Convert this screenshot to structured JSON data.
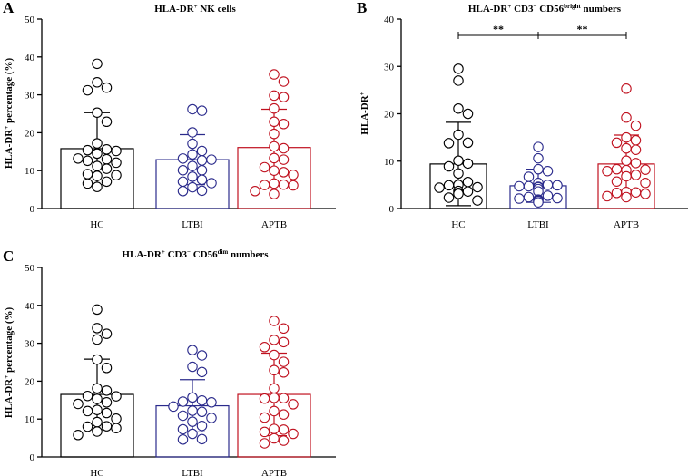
{
  "colors": {
    "HC": "#000000",
    "LTBI": "#2b2b8c",
    "APTB": "#c0111f",
    "axis": "#000000"
  },
  "chart_data": [
    {
      "type": "bar",
      "panel": "A",
      "title_main": "HLA-DR",
      "title_sup": "+",
      "title_rest": " NK cells",
      "ylabel": "HLA-DR",
      "ylabel_sup": "+",
      "ylabel_rest": " percentage (%)",
      "ylim": [
        0,
        50
      ],
      "yticks": [
        0,
        10,
        20,
        30,
        40,
        50
      ],
      "categories": [
        "HC",
        "LTBI",
        "APTB"
      ],
      "values": [
        15.8,
        12.9,
        16.1
      ],
      "sd": [
        9.5,
        6.6,
        10.1
      ],
      "points": [
        [
          38.2,
          33.3,
          31.9,
          31.2,
          25.3,
          22.9,
          17.2,
          15.6,
          15.4,
          15.2,
          14.5,
          13.2,
          13.0,
          12.6,
          12.1,
          11.2,
          10.5,
          9.1,
          8.8,
          8.6,
          7.1,
          6.6,
          5.7
        ],
        [
          26.2,
          25.8,
          20.1,
          17.1,
          15.2,
          14.3,
          13.2,
          12.9,
          12.7,
          11.2,
          10.1,
          10.1,
          8.4,
          7.6,
          7.1,
          6.7,
          5.6,
          4.7,
          4.6
        ],
        [
          35.4,
          33.5,
          29.8,
          29.4,
          26.4,
          22.9,
          22.3,
          19.7,
          16.4,
          15.9,
          13.3,
          12.9,
          10.9,
          10.0,
          9.6,
          8.9,
          6.6,
          6.3,
          6.2,
          6.1,
          4.6,
          3.8
        ]
      ],
      "significance": []
    },
    {
      "type": "bar",
      "panel": "B",
      "title_main": "HLA-DR",
      "title_sup": "+",
      "title_rest": " CD3",
      "title_sup2": "−",
      "title_rest2": " CD56",
      "title_sup3": "bright",
      "title_rest3": " numbers",
      "ylabel": "HLA-DR",
      "ylabel_sup": "+",
      "ylabel_rest": "",
      "ylim": [
        0,
        40
      ],
      "yticks": [
        0,
        10,
        20,
        30,
        40
      ],
      "categories": [
        "HC",
        "LTBI",
        "APTB"
      ],
      "values": [
        9.4,
        4.8,
        9.4
      ],
      "sd": [
        8.8,
        3.5,
        6.1
      ],
      "points": [
        [
          29.5,
          27.0,
          21.1,
          20.0,
          15.6,
          13.9,
          13.8,
          10.1,
          9.5,
          8.9,
          7.4,
          5.6,
          5.0,
          4.9,
          4.5,
          4.4,
          3.7,
          3.6,
          3.3,
          3.1,
          2.3,
          1.7
        ],
        [
          13.0,
          10.6,
          8.3,
          7.9,
          6.7,
          5.4,
          5.0,
          4.9,
          4.7,
          4.7,
          4.6,
          4.5,
          4.5,
          4.1,
          3.6,
          2.7,
          2.4,
          2.2,
          2.1,
          1.9,
          1.8,
          1.6,
          1.3
        ],
        [
          25.3,
          19.2,
          17.5,
          15.0,
          14.4,
          13.9,
          12.7,
          12.4,
          10.1,
          9.6,
          8.3,
          8.2,
          8.1,
          7.9,
          7.1,
          6.8,
          5.7,
          5.4,
          3.5,
          3.4,
          3.3,
          3.1,
          2.6,
          2.4
        ]
      ],
      "significance": [
        {
          "from": 0,
          "to": 1,
          "label": "**"
        },
        {
          "from": 1,
          "to": 2,
          "label": "**"
        }
      ]
    },
    {
      "type": "bar",
      "panel": "C",
      "title_main": "HLA-DR",
      "title_sup": "+",
      "title_rest": " CD3",
      "title_sup2": "−",
      "title_rest2": " CD56",
      "title_sup3": "dim",
      "title_rest3": " numbers",
      "ylabel": "HLA-DR",
      "ylabel_sup": "+",
      "ylabel_rest": " percentage (%)",
      "ylim": [
        0,
        50
      ],
      "yticks": [
        0,
        10,
        20,
        30,
        40,
        50
      ],
      "categories": [
        "HC",
        "LTBI",
        "APTB"
      ],
      "values": [
        16.5,
        13.5,
        16.5
      ],
      "sd": [
        9.3,
        6.9,
        10.9
      ],
      "points": [
        [
          38.9,
          34.0,
          32.5,
          31.0,
          25.7,
          23.5,
          18.1,
          17.5,
          16.1,
          16.0,
          15.3,
          14.4,
          14.0,
          12.4,
          12.1,
          11.6,
          10.1,
          9.2,
          8.1,
          8.0,
          7.6,
          6.7,
          5.8
        ],
        [
          28.2,
          26.8,
          23.8,
          22.4,
          15.7,
          14.9,
          14.6,
          14.4,
          13.3,
          12.2,
          11.9,
          10.9,
          10.3,
          9.3,
          8.2,
          7.3,
          6.1,
          4.7,
          4.6
        ],
        [
          35.9,
          33.9,
          30.9,
          30.3,
          29.0,
          26.9,
          25.1,
          22.9,
          22.3,
          18.1,
          15.6,
          15.5,
          15.4,
          13.9,
          12.1,
          11.2,
          10.4,
          7.4,
          7.2,
          6.6,
          6.1,
          4.9,
          4.3,
          3.6
        ]
      ],
      "significance": []
    }
  ]
}
